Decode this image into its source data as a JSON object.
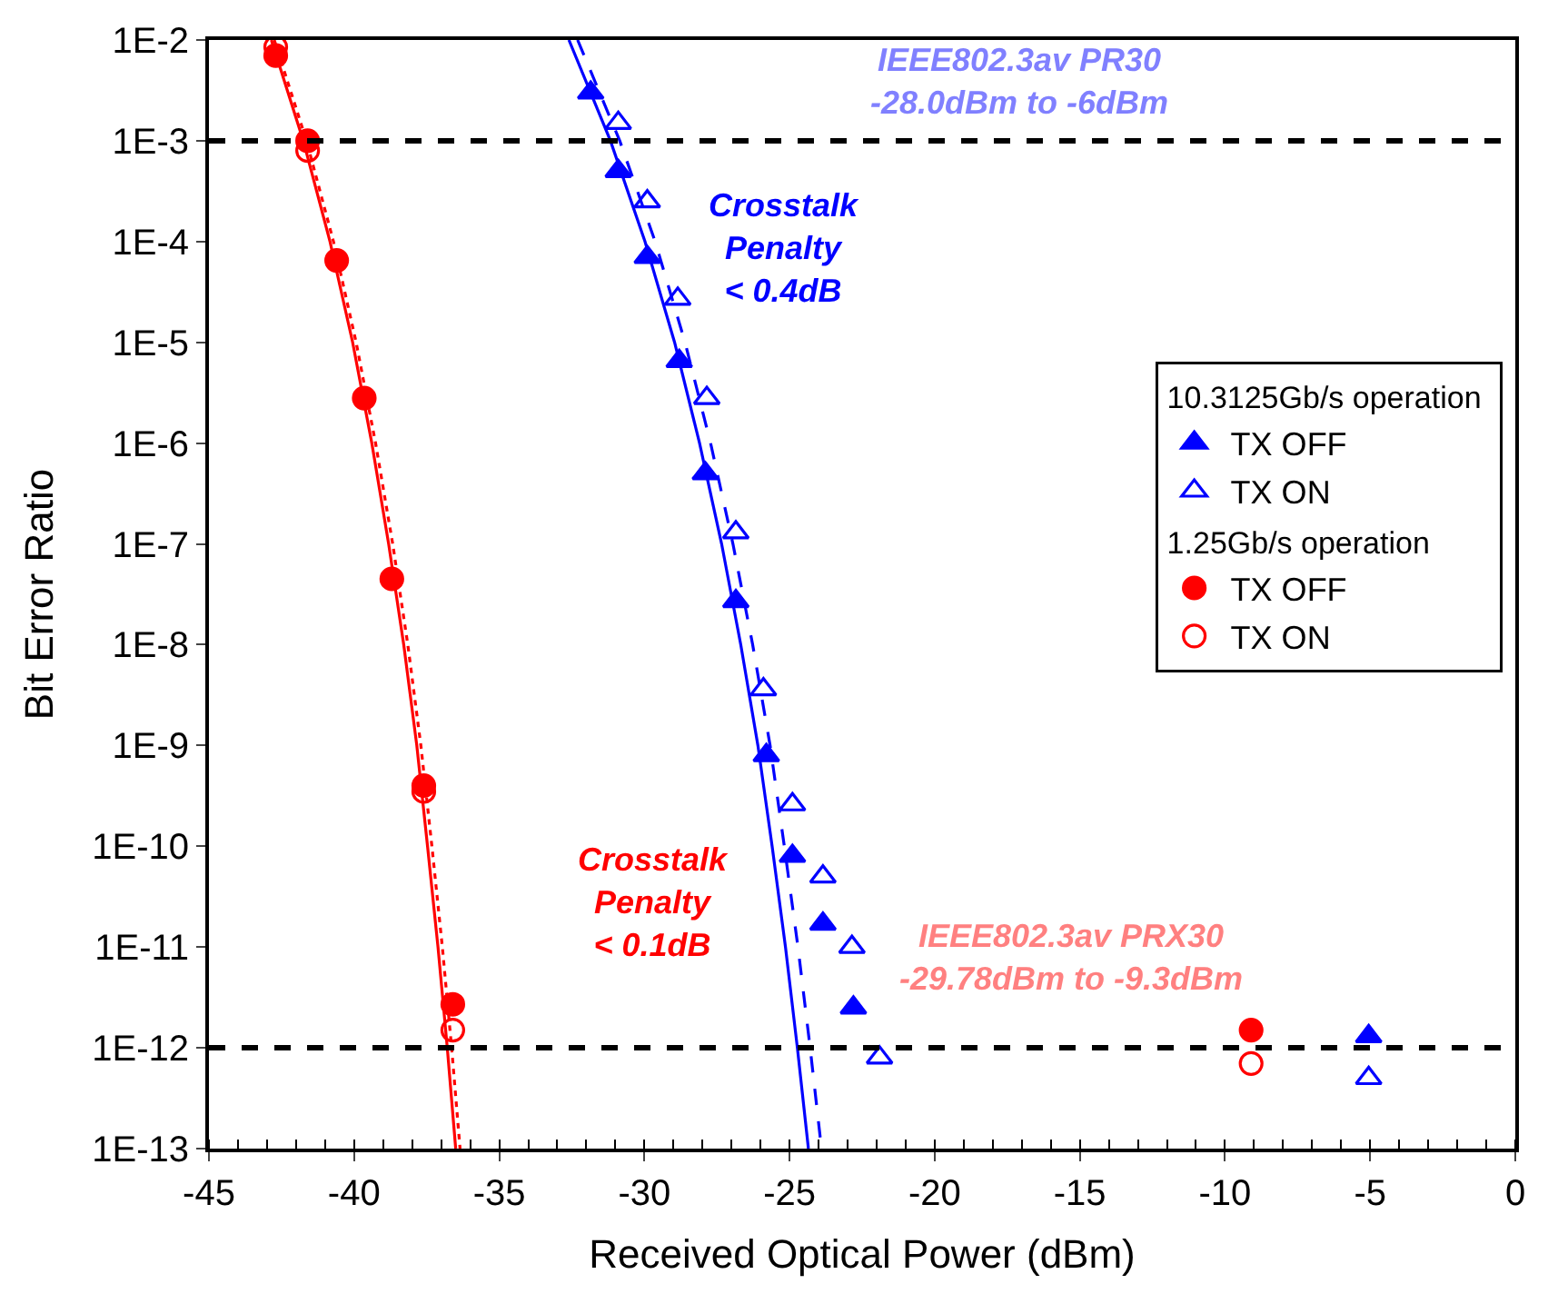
{
  "chart_data": {
    "type": "scatter",
    "xlabel": "Received Optical Power (dBm)",
    "ylabel": "Bit Error Ratio",
    "legend_title": [
      "10.3125Gb/s operation",
      "1.25Gb/s operation"
    ],
    "legend": "right",
    "log": "y",
    "xlim": [
      -45,
      0
    ],
    "xticks": [
      -45,
      -40,
      -35,
      -30,
      -25,
      -20,
      -15,
      -10,
      -5,
      0
    ],
    "ylim": [
      1e-13,
      0.01
    ],
    "yticks": [
      {
        "value": 0.01,
        "label": "1E-2"
      },
      {
        "value": 0.001,
        "label": "1E-3"
      },
      {
        "value": 0.0001,
        "label": "1E-4"
      },
      {
        "value": 1e-05,
        "label": "1E-5"
      },
      {
        "value": 1e-06,
        "label": "1E-6"
      },
      {
        "value": 1e-07,
        "label": "1E-7"
      },
      {
        "value": 1e-08,
        "label": "1E-8"
      },
      {
        "value": 1e-09,
        "label": "1E-9"
      },
      {
        "value": 1e-10,
        "label": "1E-10"
      },
      {
        "value": 1e-11,
        "label": "1E-11"
      },
      {
        "value": 1e-12,
        "label": "1E-12"
      },
      {
        "value": 1e-13,
        "label": "1E-13"
      }
    ],
    "series": [
      {
        "name": "TX OFF",
        "marker": "triangle",
        "color": "#0000ff",
        "x": [
          -31.85,
          -30.9,
          -29.9,
          -28.8,
          -27.9,
          -26.85,
          -25.8,
          -24.9,
          -23.85,
          -22.8,
          -5.05
        ],
        "values": [
          0.003,
          0.0005,
          7e-05,
          6.5e-06,
          5e-07,
          2.7e-08,
          8e-10,
          8e-11,
          1.7e-11,
          2.5e-12,
          1.3e-12
        ]
      },
      {
        "name": "TX ON",
        "marker": "triangle-open",
        "color": "#0000ff",
        "x": [
          -30.9,
          -29.9,
          -28.85,
          -27.85,
          -26.85,
          -25.9,
          -24.9,
          -23.85,
          -22.85,
          -21.9,
          -5.05
        ],
        "values": [
          0.0015,
          0.00025,
          2.7e-05,
          2.8e-06,
          1.3e-07,
          3.6e-09,
          2.6e-10,
          5e-11,
          1e-11,
          8e-13,
          5e-13
        ]
      },
      {
        "name": "TX OFF",
        "marker": "circle",
        "color": "#ff0000",
        "x": [
          -42.7,
          -41.6,
          -40.6,
          -39.65,
          -38.7,
          -37.6,
          -36.6,
          -9.1
        ],
        "values": [
          0.007,
          0.001,
          6.5e-05,
          2.8e-06,
          4.5e-08,
          4e-10,
          2.7e-12,
          1.5e-12
        ]
      },
      {
        "name": "TX ON",
        "marker": "circle-open",
        "color": "#ff0000",
        "x": [
          -42.7,
          -41.6,
          -40.6,
          -39.65,
          -38.7,
          -37.6,
          -36.6,
          -9.1
        ],
        "values": [
          0.0085,
          0.0008,
          null,
          null,
          null,
          3.5e-10,
          1.5e-12,
          7e-13
        ]
      },
      {
        "type": "line",
        "line_style": "solid",
        "color": "#0000ff",
        "x": [
          -32.6,
          -31.17,
          -29.98,
          -28.96,
          -28.1,
          -27.34,
          -26.68,
          -26.09,
          -25.6,
          -25.14,
          -24.73,
          -24.35
        ],
        "values": [
          0.01,
          0.001,
          0.0001,
          1e-05,
          1e-06,
          1e-07,
          1e-08,
          1e-09,
          1e-10,
          1e-11,
          1e-12,
          1e-13
        ]
      },
      {
        "type": "line",
        "line_style": "dashed",
        "color": "#0000ff",
        "x": [
          -32.3,
          -30.85,
          -29.63,
          -28.6,
          -27.72,
          -26.95,
          -26.27,
          -25.67,
          -25.18,
          -24.71,
          -24.29,
          -23.9
        ],
        "values": [
          0.01,
          0.001,
          0.0001,
          1e-05,
          1e-06,
          1e-07,
          1e-08,
          1e-09,
          1e-10,
          1e-11,
          1e-12,
          1e-13
        ]
      },
      {
        "type": "line",
        "line_style": "solid",
        "color": "#ff0000",
        "x": [
          -42.85,
          -41.75,
          -40.83,
          -40.05,
          -39.39,
          -38.81,
          -38.29,
          -37.84,
          -37.47,
          -37.11,
          -36.79,
          -36.5
        ],
        "values": [
          0.01,
          0.001,
          0.0001,
          1e-05,
          1e-06,
          1e-07,
          1e-08,
          1e-09,
          1e-10,
          1e-11,
          1e-12,
          1e-13
        ]
      },
      {
        "type": "line",
        "line_style": "dotted",
        "color": "#ff0000",
        "x": [
          -42.75,
          -41.64,
          -40.71,
          -39.93,
          -39.26,
          -38.67,
          -38.15,
          -37.7,
          -37.32,
          -36.96,
          -36.64,
          -36.35
        ],
        "values": [
          0.01,
          0.001,
          0.0001,
          1e-05,
          1e-06,
          1e-07,
          1e-08,
          1e-09,
          1e-10,
          1e-11,
          1e-12,
          1e-13
        ]
      }
    ],
    "ref_lines": [
      {
        "axis": "y",
        "value": 0.001,
        "color": "#000000",
        "line_style": "dashed"
      },
      {
        "axis": "y",
        "value": 1e-12,
        "color": "#000000",
        "line_style": "dashed"
      }
    ],
    "annotations": [
      "IEEE802.3av PR30\n-28.0dBm to -6dBm",
      "Crosstalk\nPenalty\n< 0.4dB",
      "IEEE802.3av PRX30\n-29.78dBm to -9.3dBm",
      "Crosstalk\nPenalty\n< 0.1dB"
    ]
  }
}
